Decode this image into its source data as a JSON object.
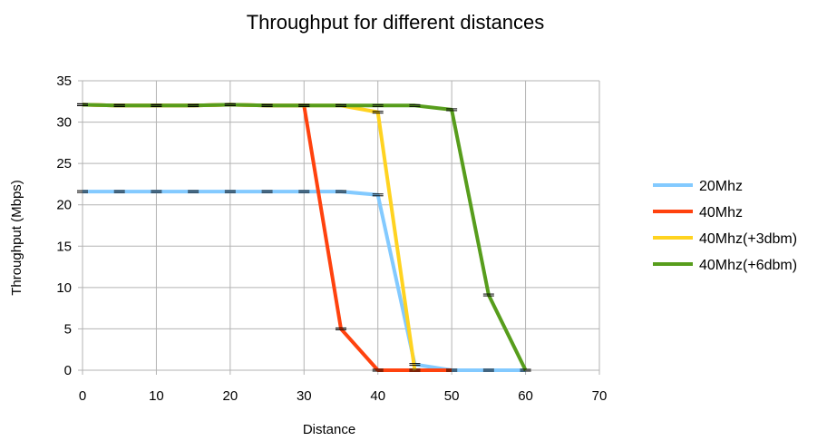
{
  "chart_data": {
    "type": "line",
    "title": "Throughput for different distances",
    "xlabel": "Distance",
    "ylabel": "Throughput (Mbps)",
    "xlim": [
      0,
      70
    ],
    "ylim": [
      0,
      35
    ],
    "xticks": [
      0,
      10,
      20,
      30,
      40,
      50,
      60,
      70
    ],
    "yticks": [
      0,
      5,
      10,
      15,
      20,
      25,
      30,
      35
    ],
    "grid": true,
    "legend_position": "right",
    "x": [
      0,
      5,
      10,
      15,
      20,
      25,
      30,
      35,
      40,
      45,
      50,
      55,
      60
    ],
    "series": [
      {
        "name": "20Mhz",
        "color": "#83CAFF",
        "values": [
          21.6,
          21.6,
          21.6,
          21.6,
          21.6,
          21.6,
          21.6,
          21.6,
          21.2,
          0.7,
          0,
          0,
          0
        ]
      },
      {
        "name": "40Mhz",
        "color": "#FF420E",
        "values": [
          32.1,
          32.0,
          32.0,
          32.0,
          32.1,
          32.0,
          32.0,
          5.0,
          0,
          0,
          0,
          null,
          null
        ]
      },
      {
        "name": "40Mhz(+3dbm)",
        "color": "#FFD320",
        "values": [
          32.1,
          32.0,
          32.0,
          32.0,
          32.1,
          32.0,
          32.0,
          32.0,
          31.2,
          0,
          null,
          null,
          null
        ]
      },
      {
        "name": "40Mhz(+6dbm)",
        "color": "#579D1C",
        "values": [
          32.1,
          32.0,
          32.0,
          32.0,
          32.1,
          32.0,
          32.0,
          32.0,
          32.0,
          32.0,
          31.5,
          9.1,
          0
        ]
      }
    ]
  }
}
